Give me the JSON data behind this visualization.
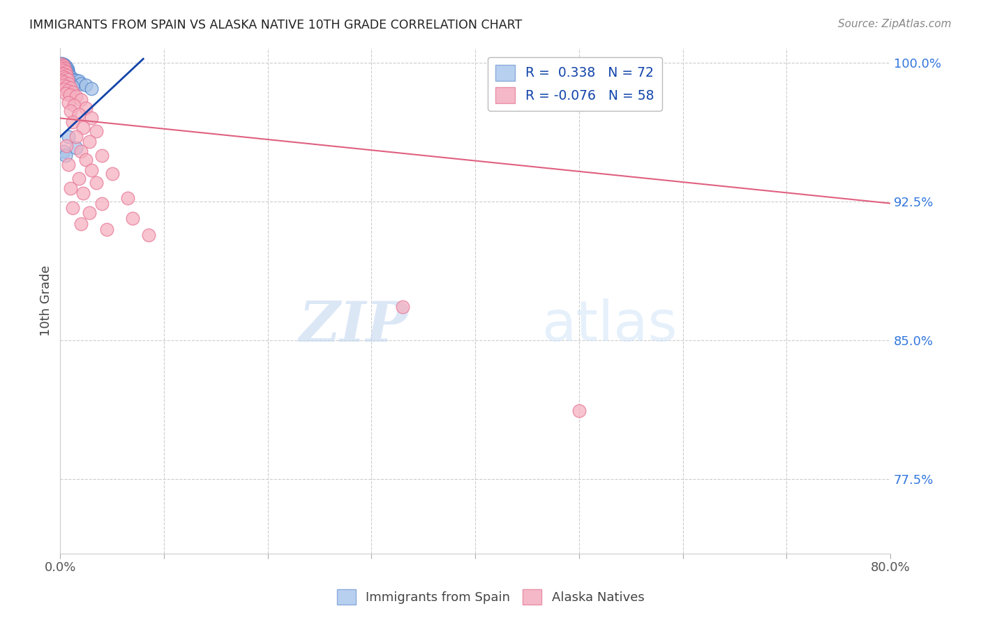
{
  "title": "IMMIGRANTS FROM SPAIN VS ALASKA NATIVE 10TH GRADE CORRELATION CHART",
  "source": "Source: ZipAtlas.com",
  "ylabel": "10th Grade",
  "watermark_zip": "ZIP",
  "watermark_atlas": "atlas",
  "xlim": [
    0.0,
    0.8
  ],
  "ylim": [
    0.735,
    1.008
  ],
  "blue_dot_color": "#a8c4e8",
  "blue_dot_edge": "#5588cc",
  "pink_dot_color": "#f5b0c0",
  "pink_dot_edge": "#e87898",
  "blue_line_color": "#1144aa",
  "pink_line_color": "#e06080",
  "grid_color": "#cccccc",
  "background_color": "#ffffff",
  "title_color": "#222222",
  "ytick_color": "#3377dd",
  "right_ytick_positions": [
    1.0,
    0.925,
    0.85,
    0.775
  ],
  "right_ytick_labels": [
    "100.0%",
    "92.5%",
    "85.0%",
    "77.5%"
  ],
  "blue_line_x": [
    0.0,
    0.08
  ],
  "blue_line_y": [
    0.96,
    1.002
  ],
  "pink_line_x": [
    0.0,
    0.8
  ],
  "pink_line_y": [
    0.97,
    0.924
  ],
  "blue_points": [
    [
      0.001,
      0.9995
    ],
    [
      0.002,
      0.9993
    ],
    [
      0.003,
      0.9992
    ],
    [
      0.001,
      0.999
    ],
    [
      0.002,
      0.9988
    ],
    [
      0.003,
      0.9987
    ],
    [
      0.004,
      0.9986
    ],
    [
      0.001,
      0.9985
    ],
    [
      0.002,
      0.9984
    ],
    [
      0.003,
      0.9983
    ],
    [
      0.004,
      0.9982
    ],
    [
      0.005,
      0.9981
    ],
    [
      0.001,
      0.998
    ],
    [
      0.002,
      0.9979
    ],
    [
      0.003,
      0.9978
    ],
    [
      0.004,
      0.9977
    ],
    [
      0.005,
      0.9976
    ],
    [
      0.006,
      0.9975
    ],
    [
      0.001,
      0.9973
    ],
    [
      0.002,
      0.9972
    ],
    [
      0.003,
      0.9971
    ],
    [
      0.004,
      0.997
    ],
    [
      0.005,
      0.9969
    ],
    [
      0.006,
      0.9968
    ],
    [
      0.007,
      0.9967
    ],
    [
      0.002,
      0.9965
    ],
    [
      0.003,
      0.9964
    ],
    [
      0.004,
      0.9963
    ],
    [
      0.005,
      0.9962
    ],
    [
      0.006,
      0.9961
    ],
    [
      0.001,
      0.996
    ],
    [
      0.002,
      0.9959
    ],
    [
      0.003,
      0.9958
    ],
    [
      0.004,
      0.9957
    ],
    [
      0.005,
      0.9956
    ],
    [
      0.006,
      0.9955
    ],
    [
      0.007,
      0.9954
    ],
    [
      0.002,
      0.995
    ],
    [
      0.003,
      0.9948
    ],
    [
      0.004,
      0.9947
    ],
    [
      0.005,
      0.9946
    ],
    [
      0.006,
      0.9945
    ],
    [
      0.007,
      0.9944
    ],
    [
      0.008,
      0.9943
    ],
    [
      0.003,
      0.994
    ],
    [
      0.004,
      0.9938
    ],
    [
      0.005,
      0.9937
    ],
    [
      0.006,
      0.9936
    ],
    [
      0.008,
      0.9934
    ],
    [
      0.003,
      0.993
    ],
    [
      0.004,
      0.9928
    ],
    [
      0.005,
      0.9927
    ],
    [
      0.006,
      0.9926
    ],
    [
      0.007,
      0.9925
    ],
    [
      0.009,
      0.9924
    ],
    [
      0.01,
      0.9922
    ],
    [
      0.004,
      0.9918
    ],
    [
      0.005,
      0.9917
    ],
    [
      0.006,
      0.9916
    ],
    [
      0.008,
      0.9915
    ],
    [
      0.01,
      0.9912
    ],
    [
      0.012,
      0.991
    ],
    [
      0.015,
      0.9905
    ],
    [
      0.018,
      0.99
    ],
    [
      0.007,
      0.9895
    ],
    [
      0.01,
      0.989
    ],
    [
      0.02,
      0.9885
    ],
    [
      0.025,
      0.988
    ],
    [
      0.012,
      0.987
    ],
    [
      0.03,
      0.986
    ],
    [
      0.008,
      0.96
    ],
    [
      0.015,
      0.954
    ],
    [
      0.003,
      0.952
    ],
    [
      0.005,
      0.95
    ]
  ],
  "pink_points": [
    [
      0.001,
      0.9992
    ],
    [
      0.003,
      0.9985
    ],
    [
      0.002,
      0.9978
    ],
    [
      0.004,
      0.997
    ],
    [
      0.001,
      0.9965
    ],
    [
      0.003,
      0.9958
    ],
    [
      0.005,
      0.995
    ],
    [
      0.002,
      0.9943
    ],
    [
      0.004,
      0.9938
    ],
    [
      0.006,
      0.993
    ],
    [
      0.003,
      0.9922
    ],
    [
      0.005,
      0.9915
    ],
    [
      0.007,
      0.9908
    ],
    [
      0.002,
      0.99
    ],
    [
      0.004,
      0.9893
    ],
    [
      0.008,
      0.9885
    ],
    [
      0.003,
      0.9877
    ],
    [
      0.006,
      0.987
    ],
    [
      0.01,
      0.9862
    ],
    [
      0.004,
      0.9855
    ],
    [
      0.007,
      0.9847
    ],
    [
      0.012,
      0.984
    ],
    [
      0.005,
      0.9832
    ],
    [
      0.009,
      0.9825
    ],
    [
      0.015,
      0.9817
    ],
    [
      0.02,
      0.98
    ],
    [
      0.008,
      0.9785
    ],
    [
      0.013,
      0.977
    ],
    [
      0.025,
      0.9755
    ],
    [
      0.01,
      0.974
    ],
    [
      0.018,
      0.972
    ],
    [
      0.03,
      0.97
    ],
    [
      0.012,
      0.968
    ],
    [
      0.022,
      0.965
    ],
    [
      0.035,
      0.963
    ],
    [
      0.015,
      0.96
    ],
    [
      0.028,
      0.9575
    ],
    [
      0.006,
      0.955
    ],
    [
      0.02,
      0.952
    ],
    [
      0.04,
      0.95
    ],
    [
      0.025,
      0.9475
    ],
    [
      0.008,
      0.945
    ],
    [
      0.03,
      0.942
    ],
    [
      0.05,
      0.94
    ],
    [
      0.018,
      0.9375
    ],
    [
      0.035,
      0.935
    ],
    [
      0.01,
      0.932
    ],
    [
      0.022,
      0.9295
    ],
    [
      0.065,
      0.9268
    ],
    [
      0.04,
      0.924
    ],
    [
      0.012,
      0.9215
    ],
    [
      0.028,
      0.919
    ],
    [
      0.07,
      0.916
    ],
    [
      0.02,
      0.913
    ],
    [
      0.045,
      0.91
    ],
    [
      0.085,
      0.907
    ],
    [
      0.33,
      0.868
    ],
    [
      0.5,
      0.812
    ]
  ]
}
